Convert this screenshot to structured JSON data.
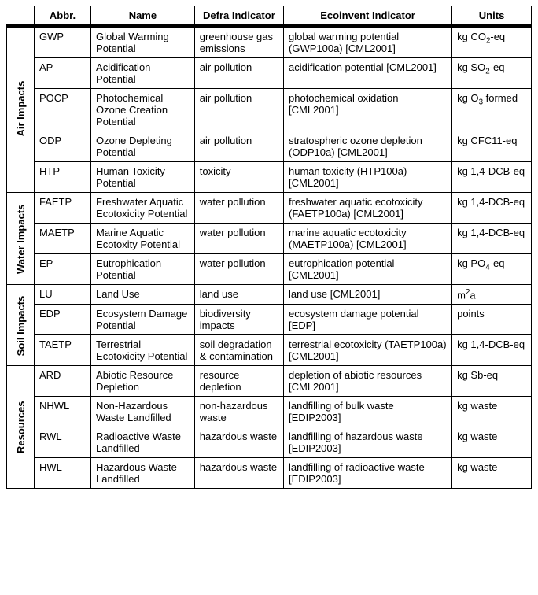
{
  "columns": {
    "abbr": "Abbr.",
    "name": "Name",
    "defra": "Defra Indicator",
    "eco": "Ecoinvent Indicator",
    "units": "Units"
  },
  "groups": [
    {
      "label": "Air Impacts",
      "rows": [
        {
          "abbr": "GWP",
          "name": "Global Warming Potential",
          "defra": "greenhouse gas emissions",
          "eco": "global warming potential (GWP100a) [CML2001]",
          "units": "kg CO<sub>2</sub>-eq"
        },
        {
          "abbr": "AP",
          "name": "Acidification Potential",
          "defra": "air pollution",
          "eco": "acidification potential [CML2001]",
          "units": "kg SO<sub>2</sub>-eq"
        },
        {
          "abbr": "POCP",
          "name": "Photochemical Ozone Creation Potential",
          "defra": "air pollution",
          "eco": "photochemical oxidation [CML2001]",
          "units": "kg O<sub>3</sub> formed"
        },
        {
          "abbr": "ODP",
          "name": "Ozone Depleting Potential",
          "defra": "air pollution",
          "eco": "stratospheric ozone depletion (ODP10a) [CML2001]",
          "units": "kg CFC11-eq"
        },
        {
          "abbr": "HTP",
          "name": "Human Toxicity Potential",
          "defra": "toxicity",
          "eco": "human toxicity (HTP100a) [CML2001]",
          "units": "kg 1,4-DCB-eq"
        }
      ]
    },
    {
      "label": "Water Impacts",
      "rows": [
        {
          "abbr": "FAETP",
          "name": "Freshwater Aquatic Ecotoxicity Potential",
          "defra": "water pollution",
          "eco": "freshwater aquatic ecotoxicity (FAETP100a) [CML2001]",
          "units": "kg 1,4-DCB-eq"
        },
        {
          "abbr": "MAETP",
          "name": "Marine Aquatic Ecotoxity Potential",
          "defra": "water pollution",
          "eco": "marine aquatic ecotoxicity (MAETP100a) [CML2001]",
          "units": "kg 1,4-DCB-eq"
        },
        {
          "abbr": "EP",
          "name": "Eutrophication Potential",
          "defra": "water pollution",
          "eco": "eutrophication potential [CML2001]",
          "units": "kg PO<sub>4</sub>-eq"
        }
      ]
    },
    {
      "label": "Soil Impacts",
      "rows": [
        {
          "abbr": "LU",
          "name": "Land Use",
          "defra": "land use",
          "eco": "land use [CML2001]",
          "units": "m<sup>2</sup>a"
        },
        {
          "abbr": "EDP",
          "name": "Ecosystem Damage Potential",
          "defra": "biodiversity impacts",
          "eco": "ecosystem damage potential [EDP]",
          "units": "points"
        },
        {
          "abbr": "TAETP",
          "name": "Terrestrial Ecotoxicity Potential",
          "defra": "soil degradation & contamination",
          "eco": "terrestrial ecotoxicity (TAETP100a) [CML2001]",
          "units": "kg 1,4-DCB-eq"
        }
      ]
    },
    {
      "label": "Resources",
      "rows": [
        {
          "abbr": "ARD",
          "name": "Abiotic Resource Depletion",
          "defra": "resource depletion",
          "eco": "depletion of abiotic resources [CML2001]",
          "units": "kg Sb-eq"
        },
        {
          "abbr": "NHWL",
          "name": "Non-Hazardous Waste Landfilled",
          "defra": "non-hazardous waste",
          "eco": "landfilling of bulk waste [EDIP2003]",
          "units": "kg waste"
        },
        {
          "abbr": "RWL",
          "name": "Radioactive Waste Landfilled",
          "defra": "hazardous waste",
          "eco": "landfilling of hazardous waste [EDIP2003]",
          "units": "kg waste"
        },
        {
          "abbr": "HWL",
          "name": "Hazardous Waste Landfilled",
          "defra": "hazardous waste",
          "eco": "landfilling of radioactive waste [EDIP2003]",
          "units": "kg waste"
        }
      ]
    }
  ]
}
